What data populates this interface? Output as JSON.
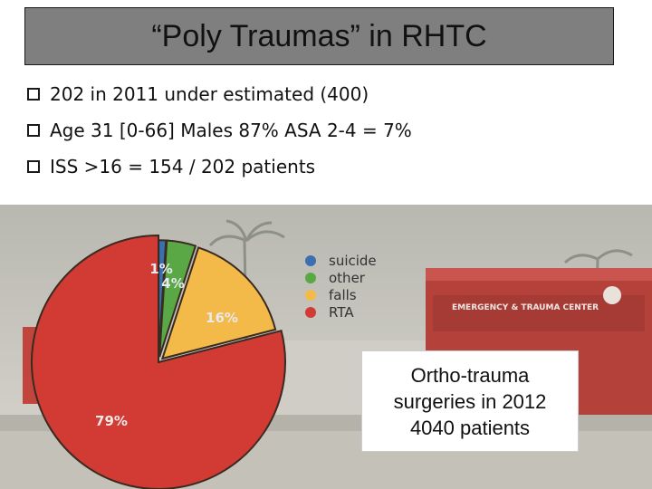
{
  "title": "“Poly Traumas” in RHTC",
  "bullets": [
    "202 in 2011 under estimated (400)",
    "Age 31 [0-66] Males 87% ASA 2-4 = 7%",
    "ISS >16 = 154 / 202 patients"
  ],
  "callout": {
    "line1": "Ortho-trauma",
    "line2": "surgeries in 2012",
    "line3": "4040 patients"
  },
  "chart_data": {
    "type": "pie",
    "categories": [
      "suicide",
      "other",
      "falls",
      "RTA"
    ],
    "values": [
      1,
      4,
      16,
      79
    ],
    "data_labels": [
      "1%",
      "4%",
      "16%",
      "79%"
    ],
    "colors": [
      "#3b6fb0",
      "#5aa845",
      "#f3b949",
      "#d23a34"
    ],
    "legend_placement": "right"
  },
  "background": {
    "sign_text": "EMERGENCY & TRAUMA CENTER"
  }
}
